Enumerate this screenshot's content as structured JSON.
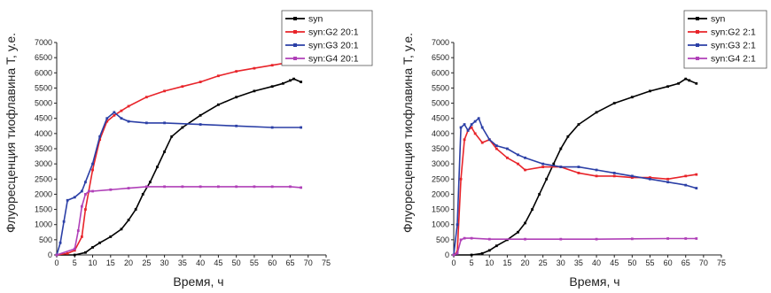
{
  "chart_data": [
    {
      "type": "line",
      "xlabel": "Время, ч",
      "ylabel": "Флуоресценция тиофлавина Т, у.е.",
      "xlim": [
        0,
        75
      ],
      "ylim": [
        0,
        7000
      ],
      "x_ticks": [
        "0",
        "5",
        "10",
        "15",
        "20",
        "25",
        "30",
        "35",
        "40",
        "45",
        "50",
        "55",
        "60",
        "65",
        "70",
        "75"
      ],
      "y_ticks": [
        "0",
        "500",
        "1000",
        "1500",
        "2000",
        "2500",
        "3000",
        "3500",
        "4000",
        "4500",
        "5000",
        "5500",
        "6000",
        "6500",
        "7000"
      ],
      "legend_position": "top-right",
      "grid": false,
      "series": [
        {
          "name": "syn",
          "color": "#000000",
          "x": [
            0,
            5,
            8,
            10,
            12,
            15,
            18,
            20,
            22,
            24,
            26,
            28,
            30,
            32,
            35,
            40,
            45,
            50,
            55,
            60,
            63,
            65,
            66,
            68
          ],
          "y": [
            0,
            0,
            80,
            250,
            400,
            600,
            850,
            1150,
            1500,
            2000,
            2400,
            2900,
            3400,
            3900,
            4200,
            4600,
            4950,
            5200,
            5400,
            5550,
            5650,
            5750,
            5800,
            5700
          ]
        },
        {
          "name": "syn:G2 20:1",
          "color": "#e8242a",
          "x": [
            0,
            3,
            5,
            7,
            8,
            10,
            12,
            14,
            16,
            18,
            20,
            25,
            30,
            35,
            40,
            45,
            50,
            55,
            60,
            65,
            68
          ],
          "y": [
            0,
            50,
            150,
            600,
            1500,
            2800,
            3800,
            4400,
            4600,
            4750,
            4900,
            5200,
            5400,
            5550,
            5700,
            5900,
            6050,
            6150,
            6250,
            6350,
            6400
          ]
        },
        {
          "name": "syn:G3 20:1",
          "color": "#2b3fa6",
          "x": [
            0,
            1,
            2,
            3,
            5,
            7,
            8,
            10,
            12,
            14,
            16,
            18,
            20,
            25,
            30,
            40,
            50,
            60,
            68
          ],
          "y": [
            0,
            400,
            1100,
            1800,
            1900,
            2100,
            2400,
            3000,
            3900,
            4500,
            4700,
            4500,
            4400,
            4350,
            4350,
            4300,
            4250,
            4200,
            4200
          ]
        },
        {
          "name": "syn:G4 20:1",
          "color": "#b040b8",
          "x": [
            0,
            5,
            6,
            7,
            8,
            9,
            10,
            15,
            20,
            25,
            30,
            35,
            40,
            45,
            50,
            55,
            60,
            65,
            68
          ],
          "y": [
            0,
            200,
            800,
            1600,
            2000,
            2100,
            2100,
            2150,
            2200,
            2250,
            2250,
            2250,
            2250,
            2250,
            2250,
            2250,
            2250,
            2250,
            2220
          ]
        }
      ]
    },
    {
      "type": "line",
      "xlabel": "Время, ч",
      "ylabel": "Флуоресценция тиофлавина Т, у.е.",
      "xlim": [
        0,
        75
      ],
      "ylim": [
        0,
        7000
      ],
      "x_ticks": [
        "0",
        "5",
        "10",
        "15",
        "20",
        "25",
        "30",
        "35",
        "40",
        "45",
        "50",
        "55",
        "60",
        "65",
        "70",
        "75"
      ],
      "y_ticks": [
        "0",
        "500",
        "1000",
        "1500",
        "2000",
        "2500",
        "3000",
        "3500",
        "4000",
        "4500",
        "5000",
        "5500",
        "6000",
        "6500",
        "7000"
      ],
      "legend_position": "top-right",
      "grid": false,
      "series": [
        {
          "name": "syn",
          "color": "#000000",
          "x": [
            0,
            5,
            8,
            10,
            12,
            15,
            18,
            20,
            22,
            24,
            26,
            28,
            30,
            32,
            35,
            40,
            45,
            50,
            55,
            60,
            63,
            65,
            66,
            68
          ],
          "y": [
            0,
            0,
            50,
            150,
            300,
            500,
            750,
            1050,
            1500,
            2000,
            2500,
            3000,
            3500,
            3900,
            4300,
            4700,
            5000,
            5200,
            5400,
            5550,
            5650,
            5800,
            5750,
            5650
          ]
        },
        {
          "name": "syn:G2 2:1",
          "color": "#e8242a",
          "x": [
            0,
            1,
            2,
            3,
            4,
            5,
            6,
            8,
            10,
            12,
            15,
            18,
            20,
            25,
            30,
            35,
            40,
            45,
            50,
            55,
            60,
            65,
            68
          ],
          "y": [
            0,
            100,
            2500,
            3800,
            4100,
            4200,
            4000,
            3700,
            3800,
            3500,
            3200,
            3000,
            2800,
            2900,
            2900,
            2700,
            2600,
            2600,
            2550,
            2550,
            2500,
            2600,
            2650
          ]
        },
        {
          "name": "syn:G3 2:1",
          "color": "#2b3fa6",
          "x": [
            0,
            1,
            2,
            3,
            4,
            5,
            6,
            7,
            8,
            10,
            12,
            15,
            18,
            20,
            25,
            30,
            35,
            40,
            45,
            50,
            55,
            60,
            65,
            68
          ],
          "y": [
            0,
            1000,
            4200,
            4300,
            4100,
            4300,
            4400,
            4500,
            4200,
            3800,
            3600,
            3500,
            3300,
            3200,
            3000,
            2900,
            2900,
            2800,
            2700,
            2600,
            2500,
            2400,
            2300,
            2200
          ]
        },
        {
          "name": "syn:G4 2:1",
          "color": "#b040b8",
          "x": [
            0,
            1,
            2,
            3,
            5,
            10,
            20,
            30,
            40,
            50,
            60,
            65,
            68
          ],
          "y": [
            0,
            50,
            500,
            550,
            550,
            520,
            520,
            520,
            520,
            530,
            540,
            540,
            540
          ]
        }
      ]
    }
  ]
}
